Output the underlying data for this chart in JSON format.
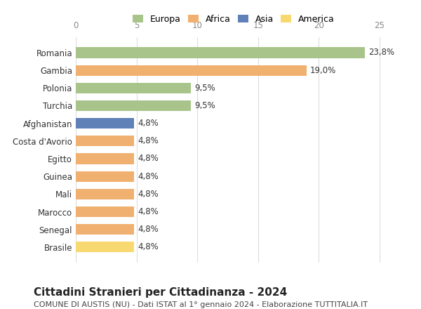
{
  "countries": [
    "Romania",
    "Gambia",
    "Polonia",
    "Turchia",
    "Afghanistan",
    "Costa d'Avorio",
    "Egitto",
    "Guinea",
    "Mali",
    "Marocco",
    "Senegal",
    "Brasile"
  ],
  "values": [
    23.8,
    19.0,
    9.5,
    9.5,
    4.8,
    4.8,
    4.8,
    4.8,
    4.8,
    4.8,
    4.8,
    4.8
  ],
  "labels": [
    "23,8%",
    "19,0%",
    "9,5%",
    "9,5%",
    "4,8%",
    "4,8%",
    "4,8%",
    "4,8%",
    "4,8%",
    "4,8%",
    "4,8%",
    "4,8%"
  ],
  "colors": [
    "#a8c48a",
    "#f0b070",
    "#a8c48a",
    "#a8c48a",
    "#6080b8",
    "#f0b070",
    "#f0b070",
    "#f0b070",
    "#f0b070",
    "#f0b070",
    "#f0b070",
    "#f8d870"
  ],
  "legend_labels": [
    "Europa",
    "Africa",
    "Asia",
    "America"
  ],
  "legend_colors": [
    "#a8c48a",
    "#f0b070",
    "#6080b8",
    "#f8d870"
  ],
  "title": "Cittadini Stranieri per Cittadinanza - 2024",
  "subtitle": "COMUNE DI AUSTIS (NU) - Dati ISTAT al 1° gennaio 2024 - Elaborazione TUTTITALIA.IT",
  "xlim": [
    0,
    26
  ],
  "xticks": [
    0,
    5,
    10,
    15,
    20,
    25
  ],
  "background_color": "#ffffff",
  "grid_color": "#dddddd",
  "bar_height": 0.6,
  "title_fontsize": 11,
  "subtitle_fontsize": 8,
  "label_fontsize": 8.5,
  "tick_fontsize": 8.5,
  "legend_fontsize": 9
}
